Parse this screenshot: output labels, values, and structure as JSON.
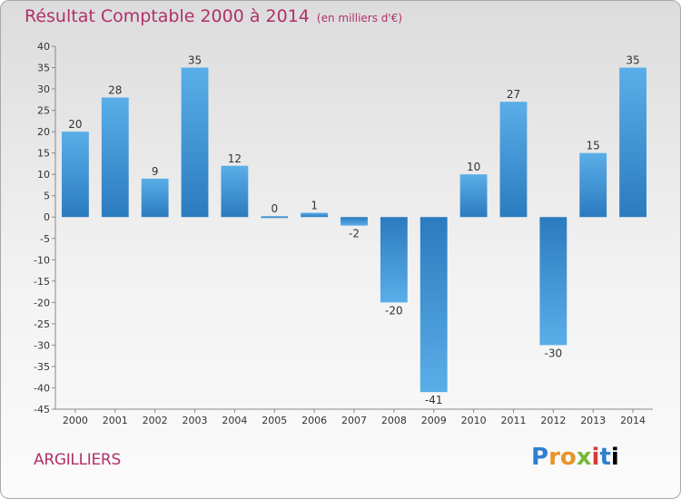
{
  "header": {
    "title": "Résultat Comptable 2000 à 2014",
    "subtitle": "(en milliers d'€)"
  },
  "footer": {
    "commune": "ARGILLIERS",
    "logo": "Proxiti"
  },
  "colors": {
    "title": "#b0306a",
    "bar_dark": "#2b7bbf",
    "bar_light": "#5aaee8"
  },
  "chart_data": {
    "type": "bar",
    "title": "Résultat Comptable 2000 à 2014",
    "subtitle": "(en milliers d'€)",
    "xlabel": "",
    "ylabel": "",
    "categories": [
      "2000",
      "2001",
      "2002",
      "2003",
      "2004",
      "2005",
      "2006",
      "2007",
      "2008",
      "2009",
      "2010",
      "2011",
      "2012",
      "2013",
      "2014"
    ],
    "values": [
      20,
      28,
      9,
      35,
      12,
      0,
      1,
      -2,
      -20,
      -41,
      10,
      27,
      -30,
      15,
      35
    ],
    "ylim": [
      -45,
      40
    ],
    "yticks": [
      40,
      35,
      30,
      25,
      20,
      15,
      10,
      5,
      0,
      -5,
      -10,
      -15,
      -20,
      -25,
      -30,
      -35,
      -40,
      -45
    ],
    "grid": false,
    "legend": "none"
  }
}
